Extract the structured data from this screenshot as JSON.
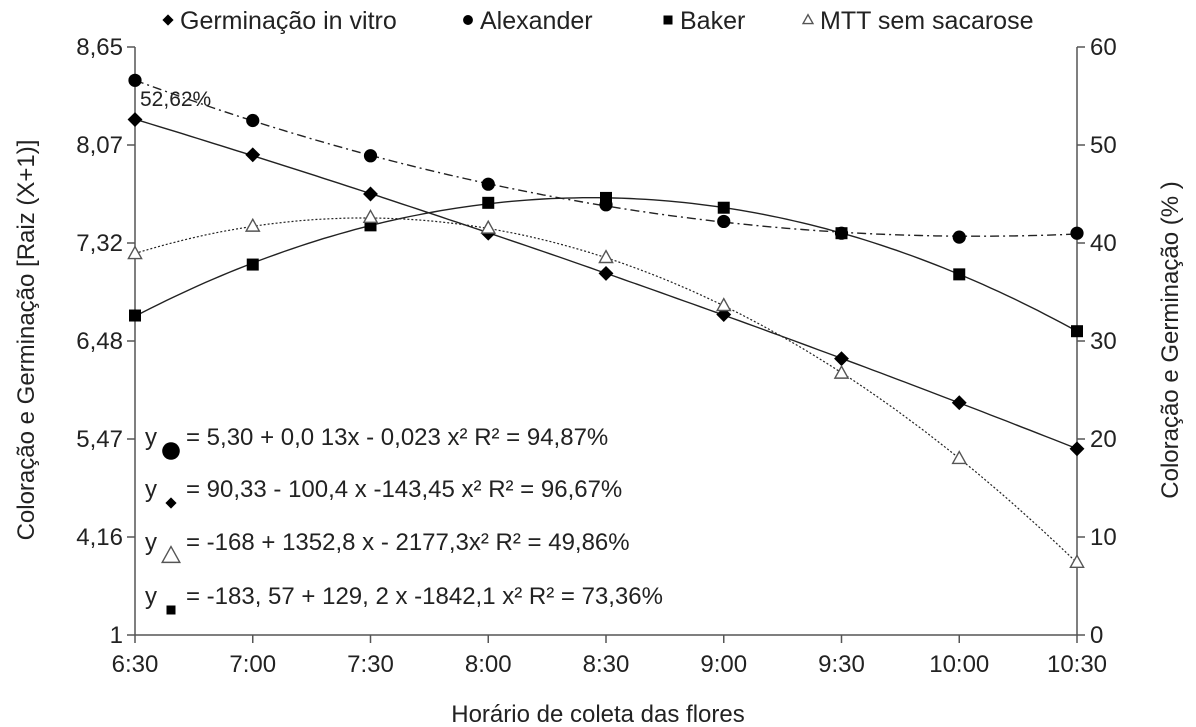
{
  "chart_data": {
    "type": "line",
    "xlabel": "Horário de coleta das flores",
    "ylabel_left": "Coloração e Germinação  [Raiz (X+1)]",
    "ylabel_right": "Coloração e Germinação (% )",
    "categories": [
      "6:30",
      "7:00",
      "7:30",
      "8:00",
      "8:30",
      "9:00",
      "9:30",
      "10:00",
      "10:30"
    ],
    "y_left_ticks": [
      "8,65",
      "8,07",
      "7,32",
      "6,48",
      "5,47",
      "4,16",
      "1"
    ],
    "y_right_ticks": [
      "60",
      "50",
      "40",
      "30",
      "20",
      "10",
      "0"
    ],
    "y_right_range": [
      0,
      60
    ],
    "grid": false,
    "legend_position": "top",
    "series": [
      {
        "name": "Germinação in vitro",
        "marker": "diamond",
        "line": "solid",
        "values": [
          52.6,
          49.0,
          45.0,
          41.0,
          36.9,
          32.7,
          28.2,
          23.7,
          19.0
        ]
      },
      {
        "name": "Alexander",
        "marker": "circle",
        "line": "dashdot",
        "values": [
          56.6,
          52.5,
          48.9,
          46.0,
          43.9,
          42.2,
          41.0,
          40.6,
          41.0
        ]
      },
      {
        "name": "Baker",
        "marker": "square",
        "line": "solid",
        "values": [
          32.6,
          37.8,
          41.8,
          44.1,
          44.6,
          43.6,
          41.0,
          36.8,
          31.0
        ]
      },
      {
        "name": "MTT sem sacarose",
        "marker": "triangle-open",
        "line": "dotted",
        "values": [
          38.9,
          41.7,
          42.6,
          41.5,
          38.5,
          33.6,
          26.7,
          18.0,
          7.4
        ]
      }
    ],
    "annotations": [
      "52,62%"
    ],
    "equations": [
      {
        "marker": "circle",
        "text": "= 5,30 + 0,0 13x - 0,023 x²  R² = 94,87%"
      },
      {
        "marker": "diamond",
        "text": "= 90,33 - 100,4 x -143,45 x²  R² = 96,67%"
      },
      {
        "marker": "triangle-open",
        "text": " = -168 + 1352,8 x - 2177,3x²  R² = 49,86%"
      },
      {
        "marker": "square",
        "text": " = -183, 57 + 129, 2 x -1842,1 x²  R² = 73,36%"
      }
    ],
    "equation_prefix": "y"
  }
}
